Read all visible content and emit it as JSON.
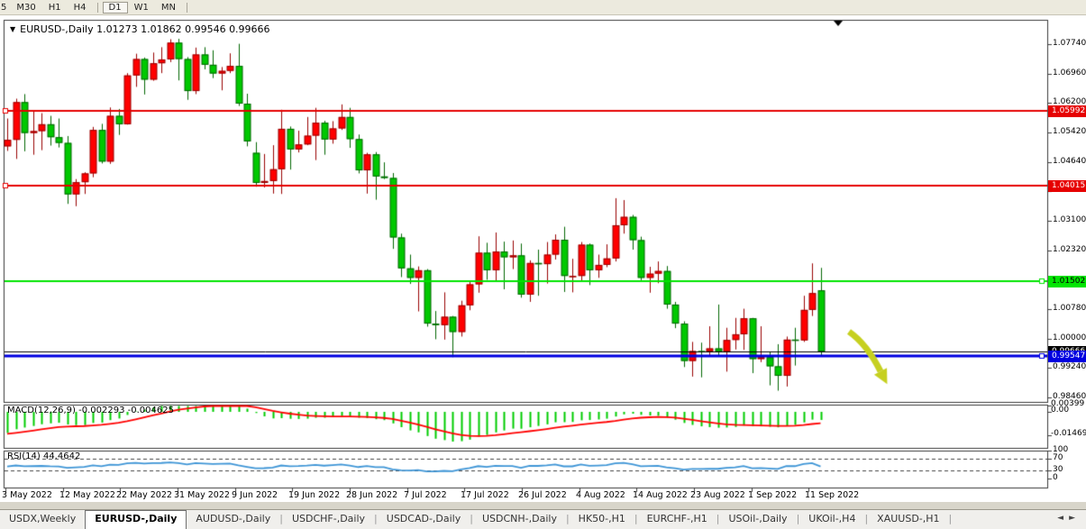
{
  "toolbar": {
    "buttons": [
      "5",
      "M30",
      "H1",
      "H4",
      "D1",
      "W1",
      "MN"
    ],
    "active": "D1"
  },
  "chart_header": {
    "collapse_icon": "▼",
    "symbol": "EURUSD-,Daily",
    "ohlc_text": "1.01273 1.01862 0.99546 0.99666"
  },
  "price_axis": {
    "gridline_labels": [
      [
        "1.07740",
        1.0774
      ],
      [
        "1.06960",
        1.0696
      ],
      [
        "1.06200",
        1.062
      ],
      [
        "1.05420",
        1.0542
      ],
      [
        "1.04640",
        1.0464
      ],
      [
        "1.03880",
        1.0388
      ],
      [
        "1.03100",
        1.031
      ],
      [
        "1.02320",
        1.0232
      ],
      [
        "1.00780",
        1.0078
      ],
      [
        "1.00000",
        1.0
      ],
      [
        "0.99240",
        0.9924
      ],
      [
        "0.98460",
        0.9846
      ]
    ]
  },
  "hlines": [
    {
      "label": "1.05992",
      "price": 1.05992,
      "color": "#e60000",
      "text_color": "#ffffff",
      "width": 2,
      "handle": "left"
    },
    {
      "label": "1.04015",
      "price": 1.04015,
      "color": "#e60000",
      "text_color": "#ffffff",
      "width": 2,
      "handle": "left"
    },
    {
      "label": "1.01502",
      "price": 1.01502,
      "color": "#00e400",
      "text_color": "#000000",
      "width": 2,
      "handle": "right"
    },
    {
      "label": "0.99666",
      "price": 0.99666,
      "color": "#000000",
      "text_color": "#ffffff",
      "width": 1,
      "handle": "none"
    },
    {
      "label": "0.99547",
      "price": 0.99547,
      "color": "#0000e0",
      "text_color": "#ffffff",
      "width": 3,
      "handle": "right"
    }
  ],
  "indicators": {
    "macd": {
      "label": "MACD(12,26,9) -0.002293 -0.004625",
      "axis_labels": [
        "0.00399",
        "0.00",
        "-0.014695"
      ],
      "histogram_color": "#00cc00",
      "signal_color": "#ff0000"
    },
    "rsi": {
      "label": "RSI(14) 44.4642",
      "axis_labels": [
        "100",
        "70",
        "30",
        "0"
      ],
      "levels": [
        70,
        30
      ],
      "line_color": "#3e95d6"
    }
  },
  "x_axis": {
    "labels": [
      [
        "3 May 2022",
        2
      ],
      [
        "12 May 2022",
        66
      ],
      [
        "22 May 2022",
        129
      ],
      [
        "31 May 2022",
        193
      ],
      [
        "9 Jun 2022",
        257
      ],
      [
        "19 Jun 2022",
        320
      ],
      [
        "28 Jun 2022",
        384
      ],
      [
        "7 Jul 2022",
        448
      ],
      [
        "17 Jul 2022",
        511
      ],
      [
        "26 Jul 2022",
        575
      ],
      [
        "4 Aug 2022",
        639
      ],
      [
        "14 Aug 2022",
        702
      ],
      [
        "23 Aug 2022",
        766
      ],
      [
        "1 Sep 2022",
        830
      ],
      [
        "11 Sep 2022",
        893
      ]
    ]
  },
  "tabs": {
    "items": [
      "USDX,Weekly",
      "EURUSD-,Daily",
      "AUDUSD-,Daily",
      "USDCHF-,Daily",
      "USDCAD-,Daily",
      "USDCNH-,Daily",
      "HK50-,H1",
      "EURCHF-,H1",
      "USOil-,Daily",
      "UKOil-,H4",
      "XAUUSD-,H1"
    ],
    "active": "EURUSD-,Daily",
    "nav_left_icon": "◄",
    "nav_right_icon": "►"
  },
  "annotations": {
    "arrow_color": "#c6d020",
    "shift_triangle_x": 930
  },
  "chart_data": {
    "type": "candlestick",
    "symbol": "EURUSD",
    "timeframe": "Daily",
    "up_color": "#ff0000",
    "down_color": "#00c800",
    "note": "red = bullish, green = bearish",
    "ohlc": [
      [
        1.0505,
        1.0578,
        1.0493,
        1.0522
      ],
      [
        1.0522,
        1.063,
        1.0472,
        1.0621
      ],
      [
        1.0621,
        1.0642,
        1.0492,
        1.054
      ],
      [
        1.054,
        1.0599,
        1.0483,
        1.0545
      ],
      [
        1.0545,
        1.0592,
        1.0495,
        1.0563
      ],
      [
        1.0563,
        1.0585,
        1.0507,
        1.0529
      ],
      [
        1.0529,
        1.0578,
        1.0502,
        1.0514
      ],
      [
        1.0514,
        1.0532,
        1.0354,
        1.0379
      ],
      [
        1.0379,
        1.0419,
        1.0348,
        1.0411
      ],
      [
        1.0411,
        1.0437,
        1.038,
        1.0434
      ],
      [
        1.0434,
        1.0556,
        1.0424,
        1.0548
      ],
      [
        1.0548,
        1.0564,
        1.046,
        1.0465
      ],
      [
        1.0465,
        1.0607,
        1.0459,
        1.0585
      ],
      [
        1.0585,
        1.0603,
        1.0535,
        1.0563
      ],
      [
        1.0563,
        1.0697,
        1.0562,
        1.0691
      ],
      [
        1.0691,
        1.0748,
        1.0661,
        1.0734
      ],
      [
        1.0734,
        1.0738,
        1.0641,
        1.068
      ],
      [
        1.068,
        1.0751,
        1.0677,
        1.0723
      ],
      [
        1.0723,
        1.0765,
        1.0697,
        1.0733
      ],
      [
        1.0733,
        1.0786,
        1.0726,
        1.0777
      ],
      [
        1.0777,
        1.0787,
        1.0678,
        1.0734
      ],
      [
        1.0734,
        1.0739,
        1.0627,
        1.065
      ],
      [
        1.065,
        1.0764,
        1.0642,
        1.0746
      ],
      [
        1.0746,
        1.0765,
        1.0707,
        1.0719
      ],
      [
        1.0719,
        1.0757,
        1.0684,
        1.0696
      ],
      [
        1.0696,
        1.0713,
        1.0652,
        1.0703
      ],
      [
        1.0703,
        1.0749,
        1.0697,
        1.0716
      ],
      [
        1.0716,
        1.0774,
        1.0611,
        1.0617
      ],
      [
        1.0617,
        1.0643,
        1.0505,
        1.0518
      ],
      [
        1.0488,
        1.0516,
        1.0399,
        1.0409
      ],
      [
        1.0409,
        1.0485,
        1.0397,
        1.0414
      ],
      [
        1.0414,
        1.0508,
        1.0381,
        1.0445
      ],
      [
        1.0445,
        1.0601,
        1.038,
        1.0551
      ],
      [
        1.0551,
        1.0557,
        1.0444,
        1.0497
      ],
      [
        1.0497,
        1.0546,
        1.0489,
        1.051
      ],
      [
        1.051,
        1.0582,
        1.0508,
        1.0533
      ],
      [
        1.0533,
        1.0606,
        1.0469,
        1.0567
      ],
      [
        1.0567,
        1.0572,
        1.0483,
        1.0523
      ],
      [
        1.0523,
        1.0571,
        1.0512,
        1.0552
      ],
      [
        1.0552,
        1.0615,
        1.0548,
        1.0582
      ],
      [
        1.0582,
        1.0606,
        1.0501,
        1.0524
      ],
      [
        1.0524,
        1.0536,
        1.0434,
        1.0442
      ],
      [
        1.0442,
        1.0488,
        1.0381,
        1.0484
      ],
      [
        1.0484,
        1.049,
        1.0365,
        1.0426
      ],
      [
        1.0426,
        1.0463,
        1.0419,
        1.0422
      ],
      [
        1.0422,
        1.0435,
        1.0236,
        1.0266
      ],
      [
        1.0266,
        1.0276,
        1.0162,
        1.0185
      ],
      [
        1.0185,
        1.0221,
        1.0144,
        1.016
      ],
      [
        1.016,
        1.019,
        1.0072,
        1.018
      ],
      [
        1.018,
        1.0183,
        1.0032,
        1.004
      ],
      [
        1.004,
        1.0073,
        0.9999,
        1.0036
      ],
      [
        1.0036,
        1.0122,
        0.9998,
        1.0058
      ],
      [
        1.0058,
        1.006,
        0.9952,
        1.0018
      ],
      [
        1.0018,
        1.01,
        1.0006,
        1.0088
      ],
      [
        1.0088,
        1.0149,
        1.0075,
        1.0143
      ],
      [
        1.0143,
        1.0269,
        1.0121,
        1.0226
      ],
      [
        1.0226,
        1.0252,
        1.0155,
        1.018
      ],
      [
        1.018,
        1.0279,
        1.0152,
        1.0229
      ],
      [
        1.0229,
        1.0255,
        1.013,
        1.0214
      ],
      [
        1.0214,
        1.0258,
        1.0183,
        1.0219
      ],
      [
        1.0219,
        1.025,
        1.0108,
        1.0116
      ],
      [
        1.0116,
        1.0206,
        1.0097,
        1.0199
      ],
      [
        1.0199,
        1.0234,
        1.0113,
        1.0196
      ],
      [
        1.0196,
        1.0254,
        1.0145,
        1.0221
      ],
      [
        1.0221,
        1.0274,
        1.0208,
        1.026
      ],
      [
        1.026,
        1.0294,
        1.0123,
        1.0165
      ],
      [
        1.0165,
        1.021,
        1.0122,
        1.0165
      ],
      [
        1.0165,
        1.0254,
        1.0151,
        1.0247
      ],
      [
        1.0247,
        1.025,
        1.0141,
        1.018
      ],
      [
        1.018,
        1.0221,
        1.016,
        1.0194
      ],
      [
        1.0194,
        1.0248,
        1.0188,
        1.0211
      ],
      [
        1.0211,
        1.0369,
        1.0203,
        1.0298
      ],
      [
        1.0298,
        1.0364,
        1.0276,
        1.032
      ],
      [
        1.032,
        1.0325,
        1.0234,
        1.0259
      ],
      [
        1.0259,
        1.0268,
        1.0154,
        1.016
      ],
      [
        1.016,
        1.0189,
        1.0121,
        1.0171
      ],
      [
        1.0171,
        1.0203,
        1.0146,
        1.0178
      ],
      [
        1.0178,
        1.0191,
        1.0079,
        1.009
      ],
      [
        1.009,
        1.0097,
        1.0028,
        1.004
      ],
      [
        1.004,
        1.0046,
        0.9926,
        0.9942
      ],
      [
        0.9942,
        0.9992,
        0.9901,
        0.9968
      ],
      [
        0.9968,
        0.999,
        0.9899,
        0.9967
      ],
      [
        0.9967,
        1.0033,
        0.9955,
        0.9975
      ],
      [
        0.9975,
        1.009,
        0.9957,
        0.9966
      ],
      [
        0.9966,
        1.0029,
        0.9914,
        0.9997
      ],
      [
        0.9997,
        1.0055,
        0.9972,
        1.0012
      ],
      [
        1.0012,
        1.0079,
        0.9971,
        1.0054
      ],
      [
        1.0054,
        1.0055,
        0.991,
        0.9947
      ],
      [
        0.9947,
        1.0033,
        0.9939,
        0.9952
      ],
      [
        0.9952,
        0.9965,
        0.9878,
        0.9928
      ],
      [
        0.9928,
        0.9986,
        0.9864,
        0.9903
      ],
      [
        0.9903,
        1.0006,
        0.9875,
        0.9998
      ],
      [
        0.9998,
        1.0029,
        0.993,
        0.9996
      ],
      [
        0.9996,
        1.0113,
        0.9992,
        1.0076
      ],
      [
        1.0076,
        1.0198,
        1.006,
        1.012
      ],
      [
        1.01273,
        1.01862,
        0.99546,
        0.99666
      ]
    ]
  }
}
